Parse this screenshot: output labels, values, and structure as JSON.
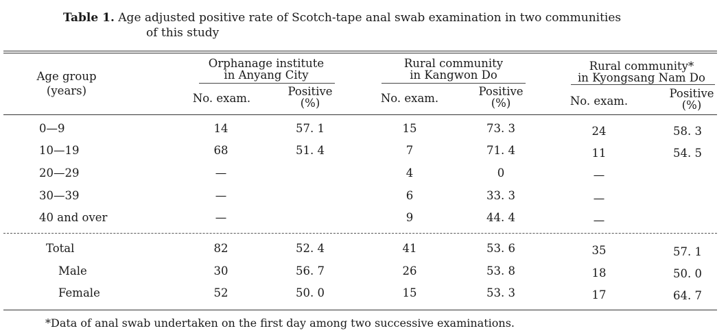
{
  "caption": {
    "label": "Table 1.",
    "text_line1": "Age adjusted positive rate of Scotch-tape anal swab examination in two communities",
    "text_line2": "of this study"
  },
  "table": {
    "age_header": "Age group",
    "age_unit": "(years)",
    "groups": [
      {
        "title_line1": "Orphanage institute",
        "title_line2": "in Anyang City"
      },
      {
        "title_line1": "Rural community",
        "title_line2": "in Kangwon Do"
      },
      {
        "title_line1": "Rural community*",
        "title_line2": "in Kyongsang Nam Do"
      }
    ],
    "sub_exam": "No. exam.",
    "sub_pos_1": "Positive",
    "sub_pos_2": "(%)",
    "rows": [
      {
        "label": "0—9",
        "cells": [
          "14",
          "57. 1",
          "15",
          "73. 3",
          "24",
          "58. 3"
        ]
      },
      {
        "label": "10—19",
        "cells": [
          "68",
          "51. 4",
          "7",
          "71. 4",
          "11",
          "54. 5"
        ]
      },
      {
        "label": "20—29",
        "cells": [
          "—",
          "",
          "4",
          "0",
          "—",
          ""
        ]
      },
      {
        "label": "30—39",
        "cells": [
          "—",
          "",
          "6",
          "33. 3",
          "—",
          ""
        ]
      },
      {
        "label": "40 and over",
        "cells": [
          "—",
          "",
          "9",
          "44. 4",
          "—",
          ""
        ]
      },
      {
        "label": "Total",
        "cells": [
          "82",
          "52. 4",
          "41",
          "53. 6",
          "35",
          "57. 1"
        ]
      },
      {
        "label": "Male",
        "cells": [
          "30",
          "56. 7",
          "26",
          "53. 8",
          "18",
          "50. 0"
        ]
      },
      {
        "label": "Female",
        "cells": [
          "52",
          "50. 0",
          "15",
          "53. 3",
          "17",
          "64. 7"
        ]
      }
    ]
  },
  "footnote": "*Data of anal swab undertaken on the first day among two successive examinations."
}
